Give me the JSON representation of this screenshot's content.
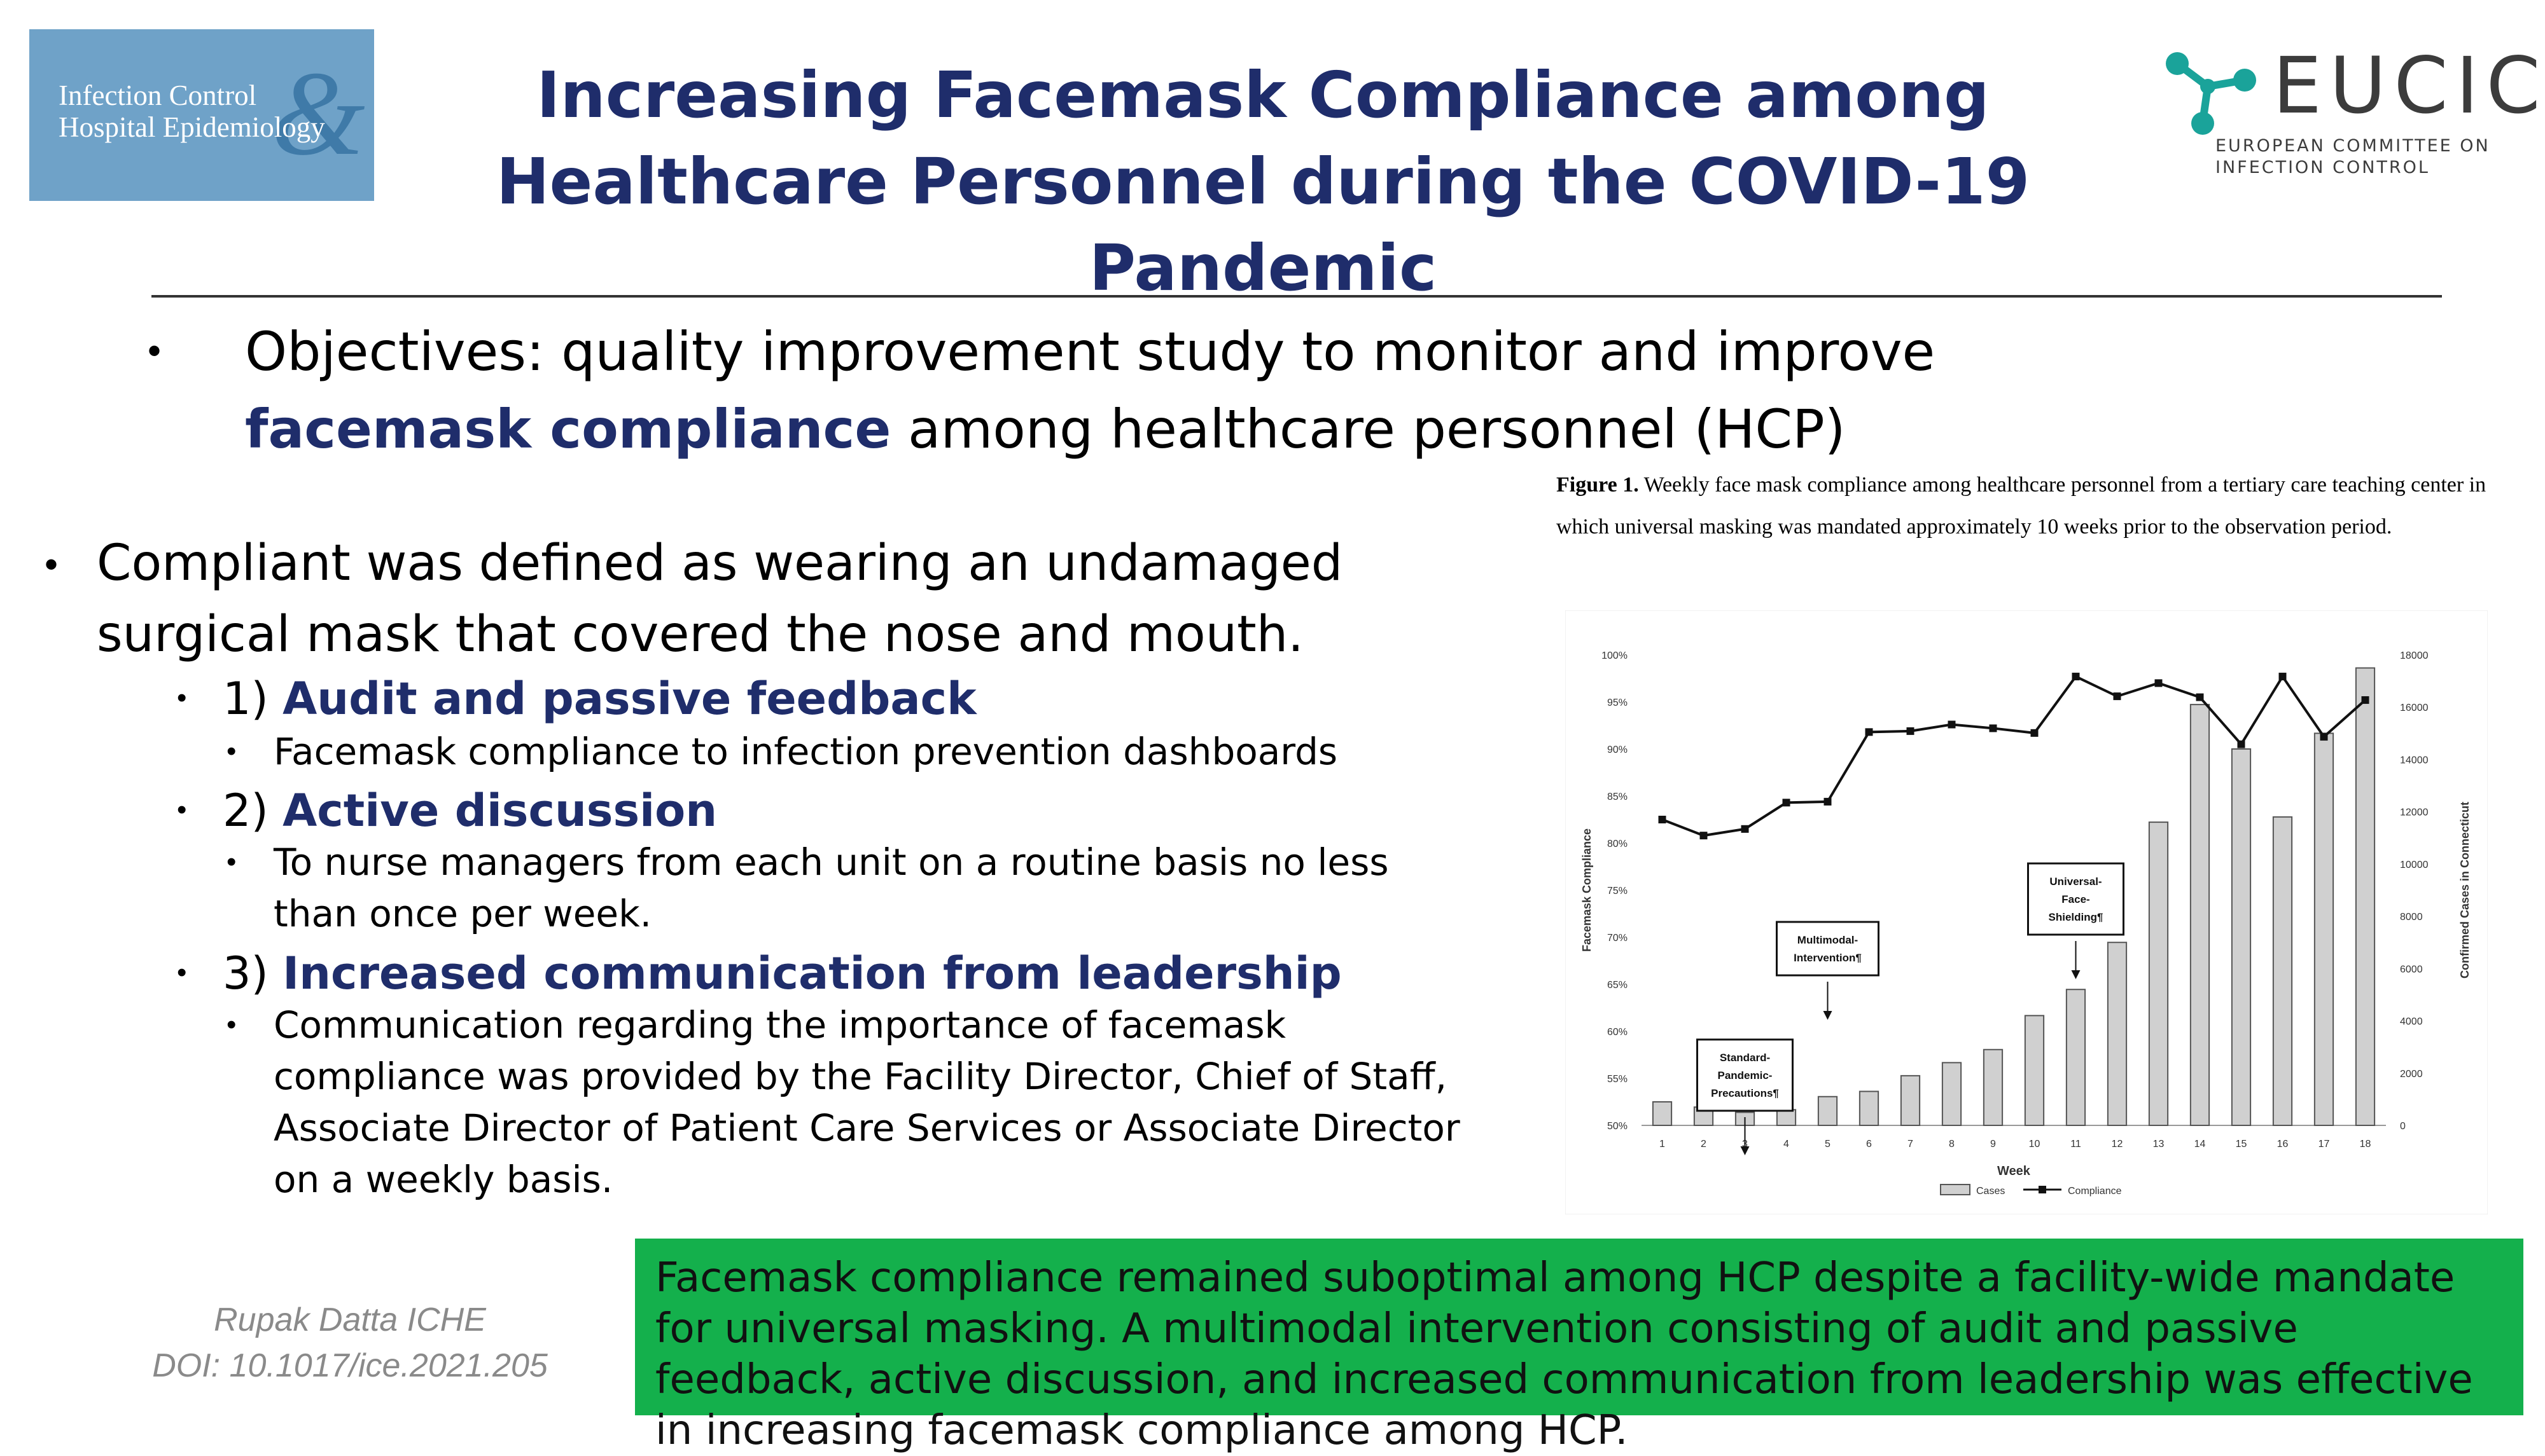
{
  "journal_logo": {
    "line1": "Infection Control",
    "amp": "&",
    "line2": "Hospital Epidemiology"
  },
  "title": "Increasing Facemask Compliance among Healthcare Personnel during the COVID-19 Pandemic",
  "eucic": {
    "name": "EUCIC",
    "sub1": "EUROPEAN COMMITTEE ON",
    "sub2": "INFECTION CONTROL",
    "accent": "#1aa39a"
  },
  "objectives": {
    "lead": "Objectives: quality improvement study to monitor and improve ",
    "highlight": "facemask compliance",
    "tail": " among healthcare personnel (HCP)"
  },
  "definition": "Compliant was defined as wearing an undamaged surgical mask that covered the nose and mouth.",
  "steps": [
    {
      "num": "1) ",
      "label": "Audit and passive feedback",
      "detail": "Facemask compliance to infection prevention dashboards"
    },
    {
      "num": "2) ",
      "label": "Active discussion",
      "detail": "To nurse managers from each unit on a routine basis no less than once per week."
    },
    {
      "num": "3) ",
      "label": "Increased communication from leadership",
      "detail": "Communication regarding the importance of facemask compliance was provided by the Facility Director, Chief of Staff, Associate Director of Patient Care Services or Associate Director on a weekly basis."
    }
  ],
  "figure_caption": {
    "label": "Figure 1.",
    "text": " Weekly face mask compliance among healthcare personnel from a tertiary care teaching center in which universal masking was mandated approximately 10 weeks prior to the observation period."
  },
  "author": {
    "line1": "Rupak Datta ICHE",
    "line2": "DOI: 10.1017/ice.2021.205"
  },
  "conclusion": "Facemask compliance remained suboptimal among HCP despite a facility-wide mandate for universal masking. A multimodal intervention consisting of audit and passive feedback, active discussion, and increased communication from leadership was effective in increasing facemask compliance among HCP.",
  "colors": {
    "title": "#1f2d6b",
    "conclusion_bg": "#14b04c",
    "logo_bg": "#6fa2c8",
    "bar_fill": "#d0d0d0",
    "line": "#111111"
  },
  "chart_data": {
    "type": "bar",
    "xlabel": "Week",
    "ylabel": "Facemask Compliance",
    "y2label": "Confirmed Cases in Connecticut",
    "categories": [
      "1",
      "2",
      "3",
      "4",
      "5",
      "6",
      "7",
      "8",
      "9",
      "10",
      "11",
      "12",
      "13",
      "14",
      "15",
      "16",
      "17",
      "18"
    ],
    "ylim": [
      50,
      100
    ],
    "y_ticks": [
      "50%",
      "55%",
      "60%",
      "65%",
      "70%",
      "75%",
      "80%",
      "85%",
      "90%",
      "95%",
      "100%"
    ],
    "y2lim": [
      0,
      18000
    ],
    "y2_ticks": [
      "0",
      "2000",
      "4000",
      "6000",
      "8000",
      "10000",
      "12000",
      "14000",
      "16000",
      "18000"
    ],
    "series": [
      {
        "name": "Cases",
        "kind": "bar",
        "axis": "right",
        "values": [
          900,
          700,
          500,
          600,
          1100,
          1300,
          1900,
          2400,
          2900,
          4200,
          5200,
          7000,
          11600,
          16100,
          14400,
          11800,
          15000,
          17500
        ]
      },
      {
        "name": "Compliance",
        "kind": "line",
        "axis": "left",
        "values": [
          82.5,
          80.8,
          81.5,
          84.3,
          84.4,
          91.8,
          91.9,
          92.6,
          92.2,
          91.7,
          97.7,
          95.6,
          97.0,
          95.5,
          90.5,
          97.7,
          91.3,
          95.2
        ]
      }
    ],
    "annotations": [
      {
        "lines": [
          "Standard-",
          "Pandemic-",
          "Precautions¶"
        ],
        "week": 3
      },
      {
        "lines": [
          "Multimodal-",
          "Intervention¶"
        ],
        "week": 5
      },
      {
        "lines": [
          "Universal-",
          "Face-",
          "Shielding¶"
        ],
        "week": 11
      }
    ],
    "legend_position": "bottom-center",
    "grid": false
  }
}
